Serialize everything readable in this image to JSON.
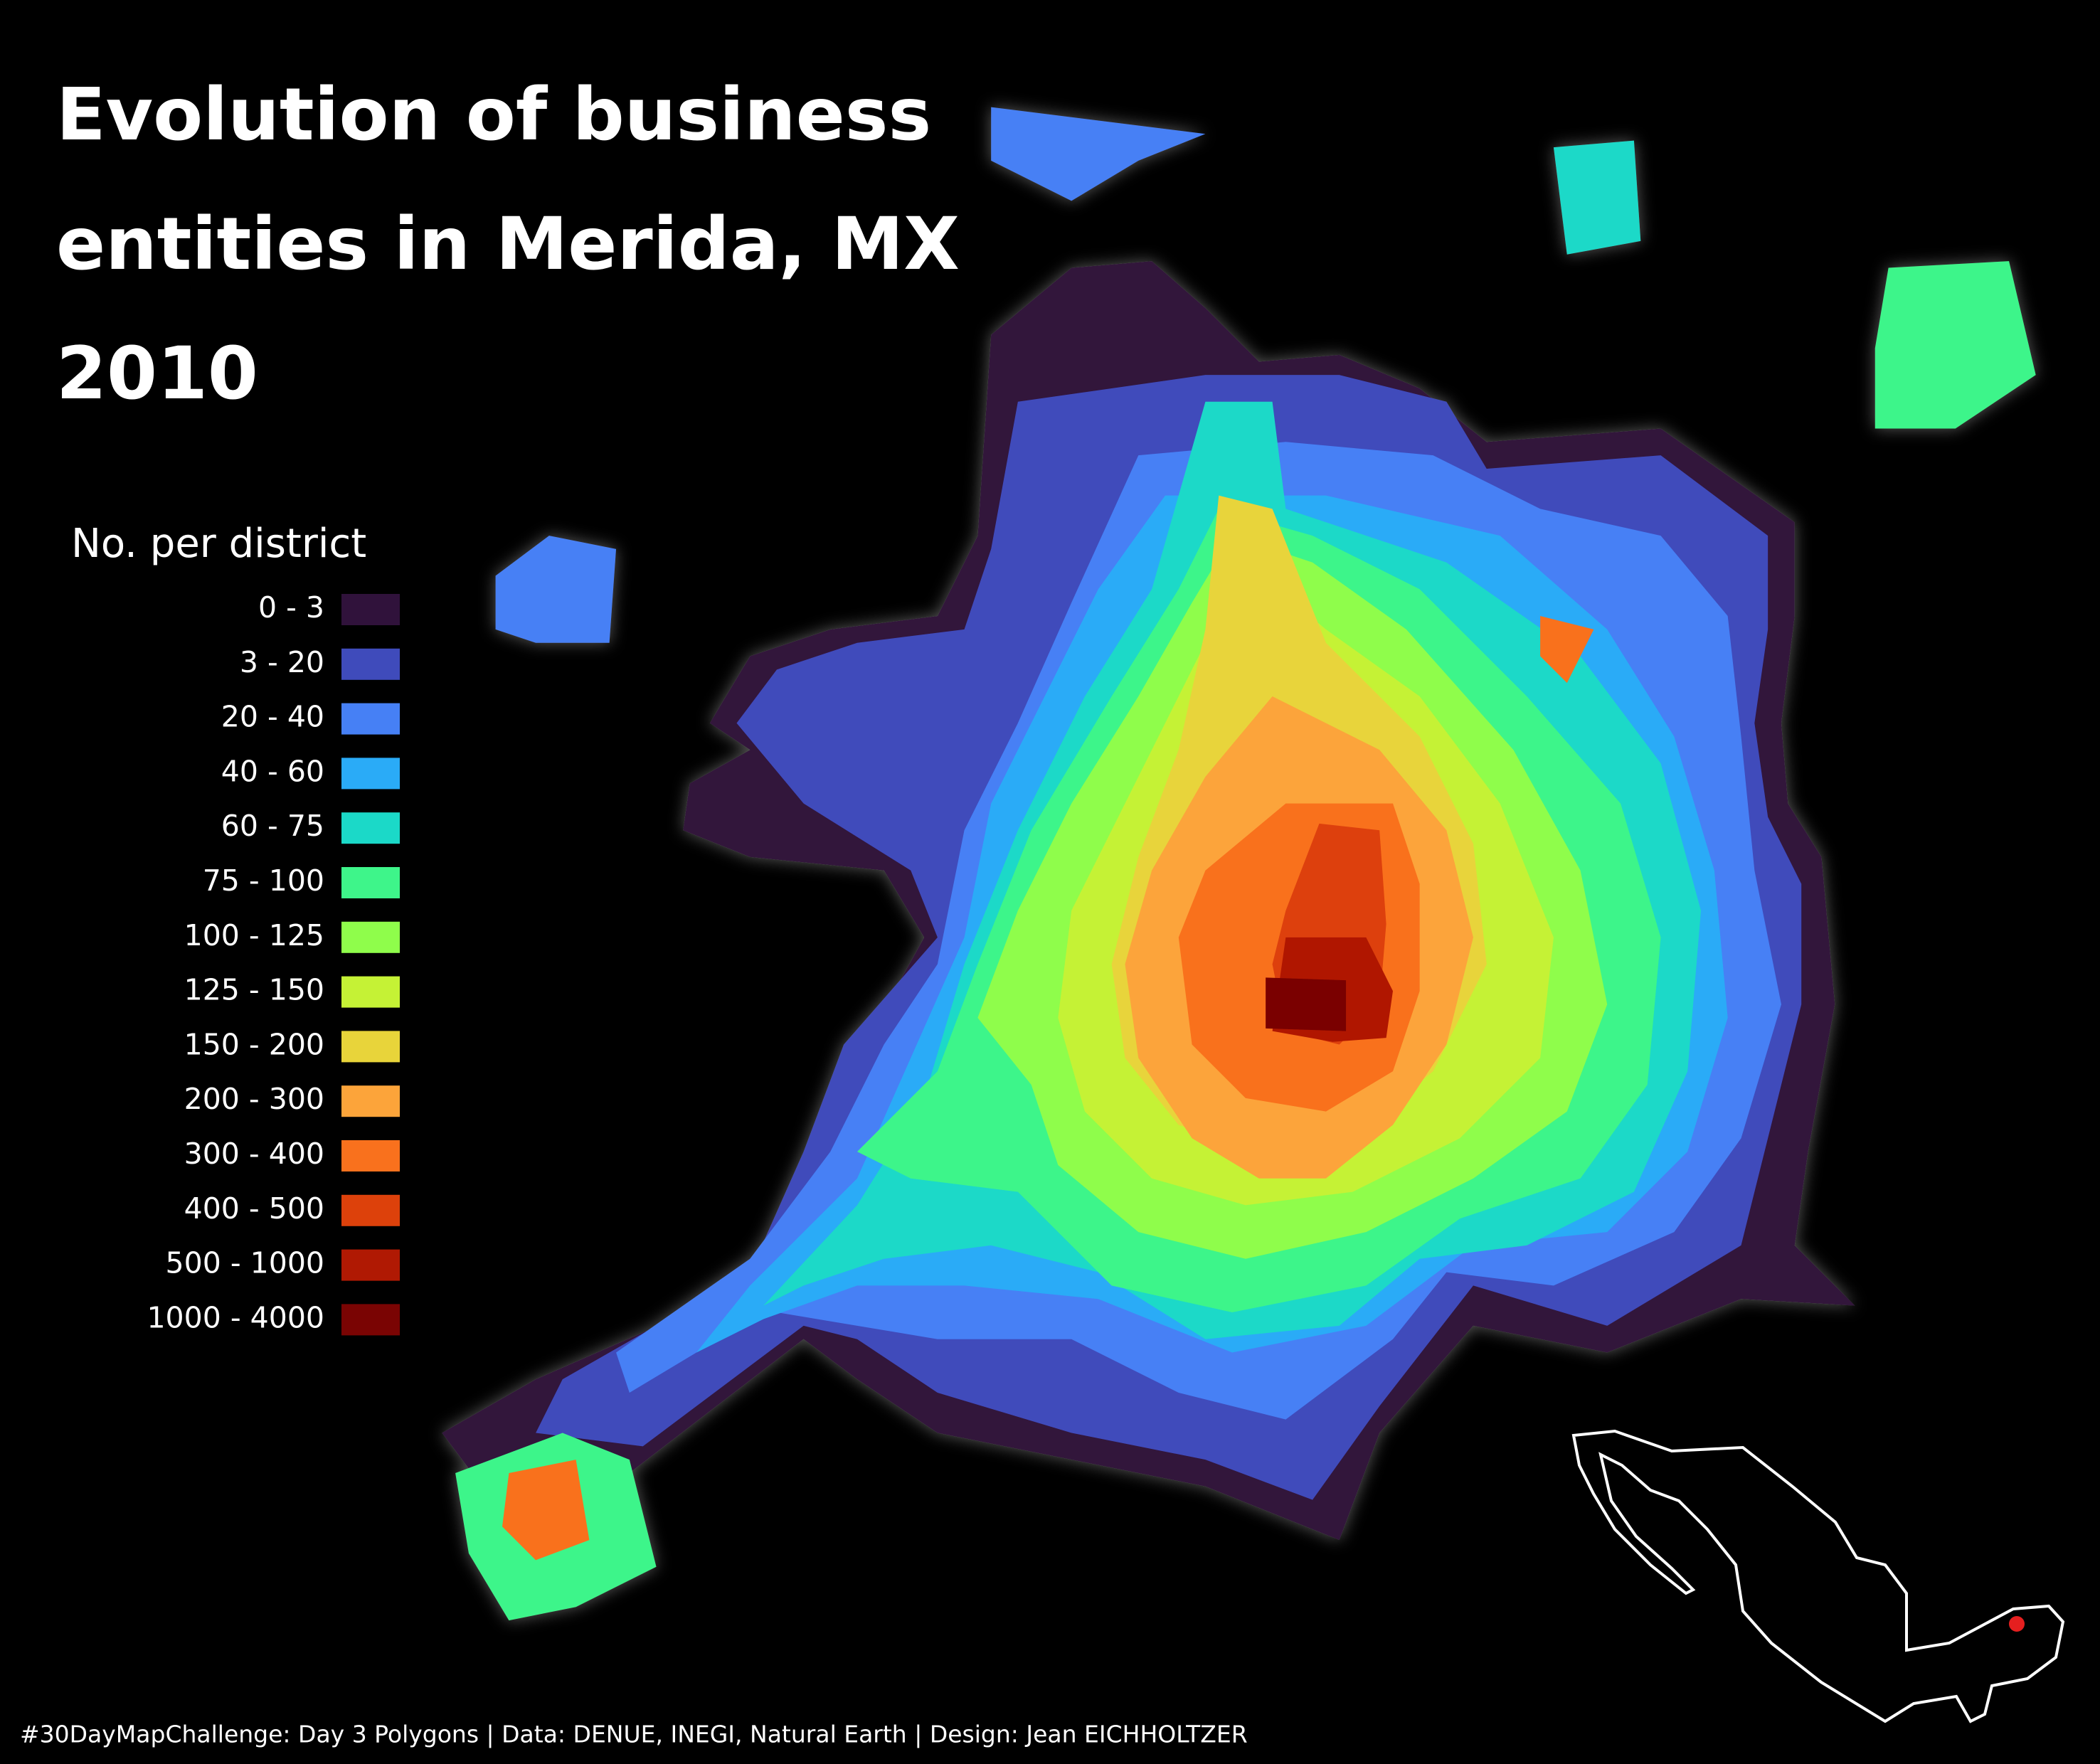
{
  "title_lines": [
    "Evolution of business",
    "entities in Merida, MX",
    "2010"
  ],
  "legend": {
    "title": "No. per district",
    "items": [
      {
        "label": "0 - 3",
        "color": "#30123b"
      },
      {
        "label": "3 - 20",
        "color": "#3f4bbb"
      },
      {
        "label": "20 - 40",
        "color": "#4680f5"
      },
      {
        "label": "40 - 60",
        "color": "#2aabf7"
      },
      {
        "label": "60 - 75",
        "color": "#1bd9c8"
      },
      {
        "label": "75 - 100",
        "color": "#3ef58a"
      },
      {
        "label": "100 - 125",
        "color": "#8ffd4b"
      },
      {
        "label": "125 - 150",
        "color": "#c5f235"
      },
      {
        "label": "150 - 200",
        "color": "#e8d43a"
      },
      {
        "label": "200 - 300",
        "color": "#fca43a"
      },
      {
        "label": "300 - 400",
        "color": "#f9711d"
      },
      {
        "label": "400 - 500",
        "color": "#dd410b"
      },
      {
        "label": "500 - 1000",
        "color": "#b01903"
      },
      {
        "label": "1000 - 4000",
        "color": "#7a0403"
      }
    ]
  },
  "caption": "#30DayMapChallenge: Day 3 Polygons | Data: DENUE, INEGI, Natural Earth | Design: Jean EICHHOLTZER"
}
